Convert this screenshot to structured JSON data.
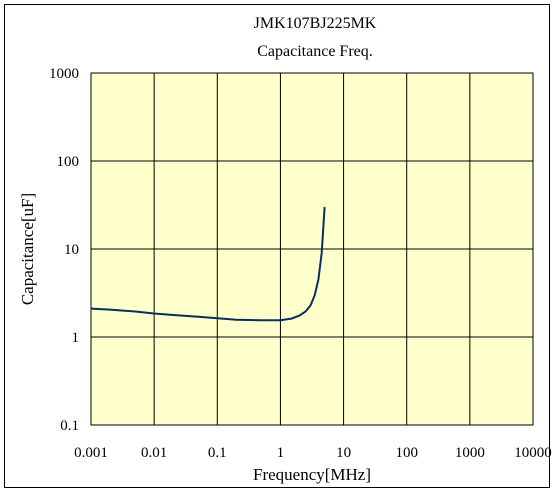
{
  "chart_data": {
    "type": "line",
    "title": "JMK107BJ225MK",
    "subtitle": "Capacitance Freq.",
    "xlabel": "Frequency[MHz]",
    "ylabel": "Capacitance[uF]",
    "x_scale": "log",
    "y_scale": "log",
    "xlim": [
      0.001,
      10000
    ],
    "ylim": [
      0.1,
      1000
    ],
    "x_ticks": [
      "0.001",
      "0.01",
      "0.1",
      "1",
      "10",
      "100",
      "1000",
      "10000"
    ],
    "y_ticks": [
      "0.1",
      "1",
      "10",
      "100",
      "1000"
    ],
    "grid": true,
    "series": [
      {
        "color": "#0b2d5e",
        "x": [
          0.001,
          0.002,
          0.005,
          0.01,
          0.02,
          0.05,
          0.1,
          0.2,
          0.5,
          1.0,
          1.5,
          2.0,
          2.5,
          3.0,
          3.5,
          4.0,
          4.5,
          5.0
        ],
        "y": [
          2.1,
          2.05,
          1.95,
          1.85,
          1.78,
          1.7,
          1.63,
          1.57,
          1.55,
          1.55,
          1.62,
          1.75,
          1.95,
          2.3,
          3.0,
          4.5,
          9.0,
          30.0
        ]
      }
    ]
  },
  "style": {
    "plot_background": "#ffffcc",
    "grid_color": "#000000"
  }
}
